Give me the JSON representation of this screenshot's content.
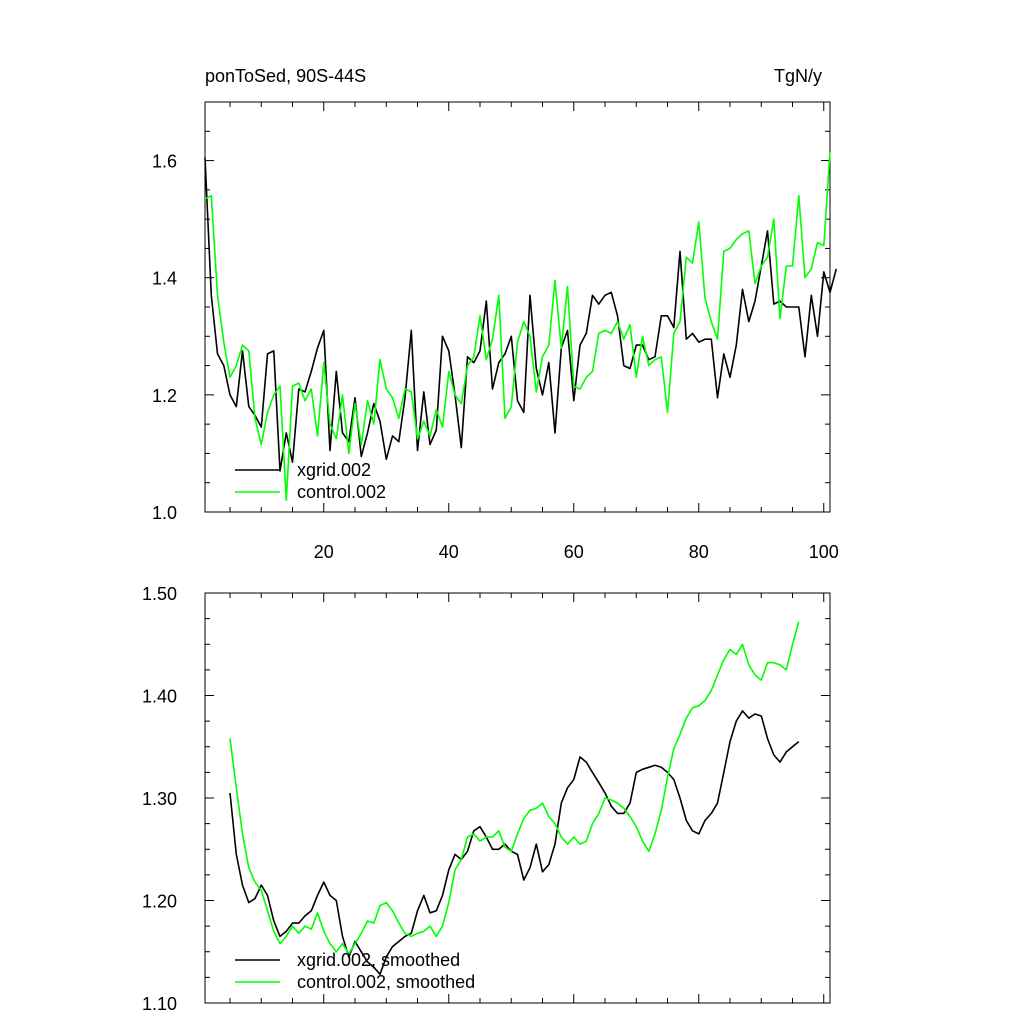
{
  "chart_data": [
    {
      "type": "line",
      "title": "ponToSed, 90S-44S",
      "units": "TgN/y",
      "xlim": [
        1,
        101
      ],
      "ylim": [
        1.0,
        1.7
      ],
      "x_ticks": [
        20,
        40,
        60,
        80,
        100
      ],
      "x_tick_labels": [
        "20",
        "40",
        "60",
        "80",
        "100"
      ],
      "y_ticks": [
        1.0,
        1.2,
        1.4,
        1.6
      ],
      "y_tick_labels": [
        "1.0",
        "1.2",
        "1.4",
        "1.6"
      ],
      "legend_position": "bottom-left",
      "series": [
        {
          "name": "xgrid.002",
          "color": "#000000",
          "x_start": 1,
          "values": [
            1.605,
            1.37,
            1.27,
            1.25,
            1.2,
            1.18,
            1.275,
            1.18,
            1.165,
            1.145,
            1.27,
            1.275,
            1.07,
            1.135,
            1.085,
            1.21,
            1.205,
            1.24,
            1.28,
            1.31,
            1.105,
            1.24,
            1.135,
            1.12,
            1.195,
            1.095,
            1.135,
            1.185,
            1.155,
            1.09,
            1.13,
            1.12,
            1.195,
            1.31,
            1.105,
            1.205,
            1.115,
            1.14,
            1.3,
            1.275,
            1.2,
            1.11,
            1.265,
            1.255,
            1.275,
            1.36,
            1.21,
            1.255,
            1.27,
            1.3,
            1.19,
            1.17,
            1.37,
            1.245,
            1.2,
            1.255,
            1.135,
            1.28,
            1.31,
            1.19,
            1.285,
            1.305,
            1.37,
            1.355,
            1.37,
            1.375,
            1.335,
            1.25,
            1.245,
            1.285,
            1.285,
            1.26,
            1.265,
            1.335,
            1.335,
            1.315,
            1.445,
            1.295,
            1.305,
            1.29,
            1.295,
            1.295,
            1.195,
            1.27,
            1.23,
            1.285,
            1.38,
            1.325,
            1.36,
            1.42,
            1.48,
            1.355,
            1.36,
            1.35,
            1.35,
            1.35,
            1.265,
            1.37,
            1.3,
            1.41,
            1.375,
            1.415
          ]
        },
        {
          "name": "control.002",
          "color": "#00ff00",
          "x_start": 1,
          "values": [
            1.535,
            1.54,
            1.37,
            1.29,
            1.23,
            1.25,
            1.285,
            1.275,
            1.16,
            1.115,
            1.17,
            1.2,
            1.215,
            1.02,
            1.215,
            1.22,
            1.19,
            1.21,
            1.13,
            1.255,
            1.15,
            1.125,
            1.2,
            1.1,
            1.185,
            1.115,
            1.19,
            1.15,
            1.26,
            1.21,
            1.195,
            1.16,
            1.21,
            1.205,
            1.125,
            1.155,
            1.13,
            1.175,
            1.145,
            1.24,
            1.2,
            1.185,
            1.25,
            1.265,
            1.335,
            1.26,
            1.295,
            1.37,
            1.16,
            1.18,
            1.29,
            1.325,
            1.3,
            1.205,
            1.265,
            1.285,
            1.395,
            1.28,
            1.385,
            1.215,
            1.21,
            1.23,
            1.24,
            1.305,
            1.31,
            1.305,
            1.325,
            1.295,
            1.32,
            1.23,
            1.3,
            1.25,
            1.26,
            1.265,
            1.17,
            1.305,
            1.325,
            1.435,
            1.425,
            1.495,
            1.365,
            1.325,
            1.295,
            1.445,
            1.45,
            1.465,
            1.475,
            1.48,
            1.39,
            1.42,
            1.435,
            1.5,
            1.33,
            1.42,
            1.42,
            1.54,
            1.4,
            1.415,
            1.46,
            1.455,
            1.615
          ]
        }
      ]
    },
    {
      "type": "line",
      "xlim": [
        1,
        101
      ],
      "ylim": [
        1.1,
        1.5
      ],
      "x_ticks": [
        20,
        40,
        60,
        80,
        100
      ],
      "y_ticks": [
        1.1,
        1.2,
        1.3,
        1.4,
        1.5
      ],
      "y_tick_labels": [
        "1.10",
        "1.20",
        "1.30",
        "1.40",
        "1.50"
      ],
      "legend_position": "bottom-left",
      "series": [
        {
          "name": "xgrid.002, smoothed",
          "color": "#000000",
          "x_start": 5,
          "values": [
            1.305,
            1.245,
            1.215,
            1.198,
            1.202,
            1.215,
            1.205,
            1.18,
            1.165,
            1.17,
            1.178,
            1.178,
            1.185,
            1.19,
            1.205,
            1.218,
            1.205,
            1.2,
            1.165,
            1.145,
            1.16,
            1.15,
            1.14,
            1.135,
            1.128,
            1.145,
            1.155,
            1.16,
            1.165,
            1.168,
            1.19,
            1.205,
            1.188,
            1.19,
            1.205,
            1.23,
            1.245,
            1.24,
            1.248,
            1.268,
            1.272,
            1.262,
            1.25,
            1.25,
            1.255,
            1.248,
            1.245,
            1.22,
            1.232,
            1.255,
            1.228,
            1.235,
            1.255,
            1.295,
            1.31,
            1.318,
            1.34,
            1.335,
            1.325,
            1.315,
            1.305,
            1.292,
            1.285,
            1.285,
            1.295,
            1.325,
            1.328,
            1.33,
            1.332,
            1.33,
            1.325,
            1.318,
            1.3,
            1.278,
            1.268,
            1.265,
            1.278,
            1.285,
            1.295,
            1.325,
            1.355,
            1.375,
            1.385,
            1.378,
            1.382,
            1.38,
            1.358,
            1.342,
            1.335,
            1.345,
            1.35,
            1.355
          ]
        },
        {
          "name": "control.002, smoothed",
          "color": "#00ff00",
          "x_start": 5,
          "values": [
            1.358,
            1.31,
            1.265,
            1.232,
            1.218,
            1.21,
            1.19,
            1.17,
            1.158,
            1.165,
            1.175,
            1.168,
            1.175,
            1.172,
            1.188,
            1.17,
            1.158,
            1.15,
            1.158,
            1.148,
            1.158,
            1.168,
            1.18,
            1.178,
            1.195,
            1.198,
            1.19,
            1.178,
            1.168,
            1.165,
            1.168,
            1.17,
            1.175,
            1.165,
            1.175,
            1.198,
            1.23,
            1.24,
            1.262,
            1.265,
            1.258,
            1.262,
            1.262,
            1.268,
            1.252,
            1.248,
            1.265,
            1.28,
            1.288,
            1.29,
            1.295,
            1.282,
            1.275,
            1.262,
            1.255,
            1.262,
            1.255,
            1.258,
            1.275,
            1.285,
            1.3,
            1.298,
            1.295,
            1.29,
            1.282,
            1.272,
            1.258,
            1.248,
            1.265,
            1.288,
            1.32,
            1.348,
            1.362,
            1.378,
            1.388,
            1.39,
            1.395,
            1.405,
            1.42,
            1.435,
            1.445,
            1.44,
            1.45,
            1.43,
            1.42,
            1.415,
            1.432,
            1.432,
            1.43,
            1.425,
            1.45,
            1.472
          ]
        }
      ]
    }
  ]
}
